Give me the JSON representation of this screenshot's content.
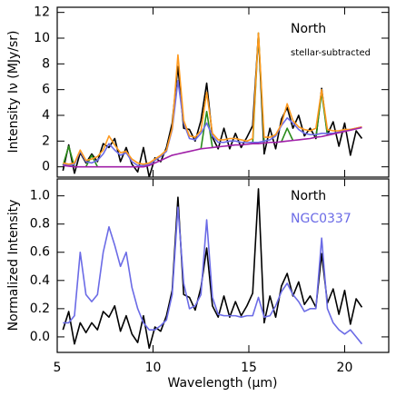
{
  "chart_data": [
    {
      "type": "line",
      "ylabel": "Intensity Iν (MJy/sr)",
      "annotations": [
        "North",
        "stellar-subtracted"
      ],
      "xlim": [
        5,
        22.3
      ],
      "ylim": [
        -0.8,
        12.4
      ],
      "yticks": [
        0,
        2,
        4,
        6,
        8,
        10,
        12
      ],
      "x": [
        5.3,
        5.6,
        5.9,
        6.2,
        6.5,
        6.8,
        7.1,
        7.4,
        7.7,
        8.0,
        8.3,
        8.6,
        8.9,
        9.2,
        9.5,
        9.8,
        10.1,
        10.4,
        10.7,
        11.0,
        11.3,
        11.6,
        11.9,
        12.2,
        12.5,
        12.8,
        13.1,
        13.4,
        13.7,
        14.0,
        14.3,
        14.6,
        14.9,
        15.2,
        15.5,
        15.8,
        16.1,
        16.4,
        16.7,
        17.0,
        17.3,
        17.6,
        17.9,
        18.2,
        18.5,
        18.8,
        19.1,
        19.4,
        19.7,
        20.0,
        20.3,
        20.6,
        20.9
      ],
      "series": [
        {
          "color": "#000000",
          "values": [
            -0.3,
            1.7,
            -0.5,
            1.1,
            0.3,
            1.0,
            0.4,
            1.8,
            1.5,
            2.2,
            0.4,
            1.5,
            0.2,
            -0.4,
            1.5,
            -0.8,
            0.7,
            0.4,
            1.5,
            3.4,
            7.8,
            3.0,
            2.9,
            2.0,
            3.6,
            6.5,
            2.3,
            1.4,
            3.0,
            1.4,
            2.6,
            1.5,
            2.3,
            3.2,
            10.3,
            1.0,
            3.0,
            1.4,
            3.7,
            4.6,
            3.0,
            4.0,
            2.4,
            3.0,
            2.2,
            6.1,
            2.5,
            3.5,
            1.6,
            3.4,
            0.9,
            2.8,
            2.2
          ]
        },
        {
          "color": "#2a8c1a",
          "values": [
            0.1,
            1.6,
            0,
            null,
            0,
            0.9,
            0,
            null,
            null,
            null,
            null,
            null,
            null,
            null,
            null,
            null,
            null,
            null,
            null,
            null,
            null,
            null,
            null,
            null,
            1.4,
            4.3,
            1.5,
            null,
            null,
            null,
            null,
            null,
            null,
            1.8,
            10.4,
            1.85,
            null,
            null,
            1.95,
            3.0,
            2.05,
            null,
            null,
            null,
            2.3,
            5.8,
            2.45,
            null,
            null,
            null,
            null,
            null,
            null
          ]
        },
        {
          "color": "#6b6be6",
          "values": [
            0.2,
            0.1,
            0.2,
            1.2,
            0.4,
            0.3,
            0.5,
            1.0,
            1.8,
            1.3,
            0.9,
            1.1,
            0.4,
            0.1,
            0.1,
            0.2,
            0.5,
            0.8,
            1.2,
            2.9,
            6.7,
            3.4,
            2.2,
            2.1,
            2.6,
            3.4,
            2.4,
            1.9,
            1.9,
            2.0,
            2.0,
            1.9,
            1.9,
            1.9,
            1.9,
            2.0,
            2.1,
            2.4,
            3.2,
            3.8,
            3.4,
            2.9,
            2.6,
            2.5,
            2.5,
            2.6,
            2.6,
            2.6,
            2.7,
            2.8,
            2.9,
            3.0,
            3.1
          ]
        },
        {
          "color": "#ff9a1f",
          "values": [
            0.3,
            0.2,
            0.3,
            1.3,
            0.5,
            0.6,
            0.8,
            1.3,
            2.4,
            1.7,
            1.1,
            1.2,
            0.6,
            0.3,
            0.2,
            0.3,
            0.6,
            0.9,
            1.3,
            3.0,
            8.7,
            3.6,
            2.4,
            2.3,
            2.8,
            5.8,
            2.6,
            2.1,
            2.1,
            2.2,
            2.2,
            2.1,
            2.0,
            2.2,
            10.4,
            2.3,
            2.3,
            2.5,
            3.3,
            4.9,
            3.6,
            3.1,
            2.9,
            2.8,
            3.0,
            6.0,
            2.9,
            2.8,
            2.8,
            2.9,
            2.9,
            3.0,
            3.1
          ]
        },
        {
          "color": "#a020a8",
          "values": [
            0.1,
            0.05,
            0,
            0,
            0,
            0,
            0,
            0,
            0,
            0,
            0,
            0,
            0,
            0,
            0,
            0.1,
            0.3,
            0.5,
            0.7,
            0.9,
            1.0,
            1.1,
            1.2,
            1.3,
            1.4,
            1.45,
            1.5,
            1.55,
            1.6,
            1.65,
            1.7,
            1.7,
            1.75,
            1.8,
            1.8,
            1.85,
            1.9,
            1.9,
            1.95,
            2.0,
            2.05,
            2.1,
            2.15,
            2.2,
            2.3,
            2.35,
            2.45,
            2.55,
            2.65,
            2.75,
            2.85,
            2.95,
            3.05
          ]
        }
      ]
    },
    {
      "type": "line",
      "ylabel": "Normalized Intensity",
      "xlabel": "Wavelength (μm)",
      "xlim": [
        5,
        22.3
      ],
      "xticks": [
        5,
        10,
        15,
        20
      ],
      "ylim": [
        -0.11,
        1.12
      ],
      "yticks": [
        {
          "value": 0,
          "label": "0.0"
        },
        0.2,
        0.4,
        0.6,
        0.8,
        {
          "value": 1,
          "label": "1.0"
        }
      ],
      "x": [
        5.3,
        5.6,
        5.9,
        6.2,
        6.5,
        6.8,
        7.1,
        7.4,
        7.7,
        8.0,
        8.3,
        8.6,
        8.9,
        9.2,
        9.5,
        9.8,
        10.1,
        10.4,
        10.7,
        11.0,
        11.3,
        11.6,
        11.9,
        12.2,
        12.5,
        12.8,
        13.1,
        13.4,
        13.7,
        14.0,
        14.3,
        14.6,
        14.9,
        15.2,
        15.5,
        15.8,
        16.1,
        16.4,
        16.7,
        17.0,
        17.3,
        17.6,
        17.9,
        18.2,
        18.5,
        18.8,
        19.1,
        19.4,
        19.7,
        20.0,
        20.3,
        20.6,
        20.9
      ],
      "series": [
        {
          "name": "North",
          "color": "#000000",
          "values": [
            0.05,
            0.18,
            -0.05,
            0.1,
            0.03,
            0.1,
            0.05,
            0.18,
            0.14,
            0.22,
            0.04,
            0.15,
            0.02,
            -0.04,
            0.15,
            -0.08,
            0.07,
            0.04,
            0.15,
            0.33,
            0.99,
            0.3,
            0.28,
            0.19,
            0.35,
            0.63,
            0.22,
            0.14,
            0.29,
            0.14,
            0.25,
            0.15,
            0.22,
            0.31,
            1.05,
            0.1,
            0.29,
            0.14,
            0.36,
            0.45,
            0.29,
            0.39,
            0.23,
            0.29,
            0.21,
            0.59,
            0.24,
            0.34,
            0.16,
            0.33,
            0.09,
            0.27,
            0.21
          ]
        },
        {
          "name": "NGC0337",
          "color": "#6b6be6",
          "values": [
            0.1,
            0.1,
            0.15,
            0.6,
            0.3,
            0.25,
            0.3,
            0.6,
            0.78,
            0.65,
            0.5,
            0.6,
            0.35,
            0.2,
            0.1,
            0.05,
            0.05,
            0.08,
            0.12,
            0.3,
            0.92,
            0.38,
            0.2,
            0.22,
            0.3,
            0.83,
            0.28,
            0.16,
            0.15,
            0.15,
            0.15,
            0.14,
            0.15,
            0.15,
            0.28,
            0.14,
            0.15,
            0.22,
            0.32,
            0.38,
            0.3,
            0.25,
            0.18,
            0.2,
            0.2,
            0.7,
            0.2,
            0.1,
            0.05,
            0.02,
            0.05,
            0.0,
            -0.05
          ]
        }
      ]
    }
  ]
}
